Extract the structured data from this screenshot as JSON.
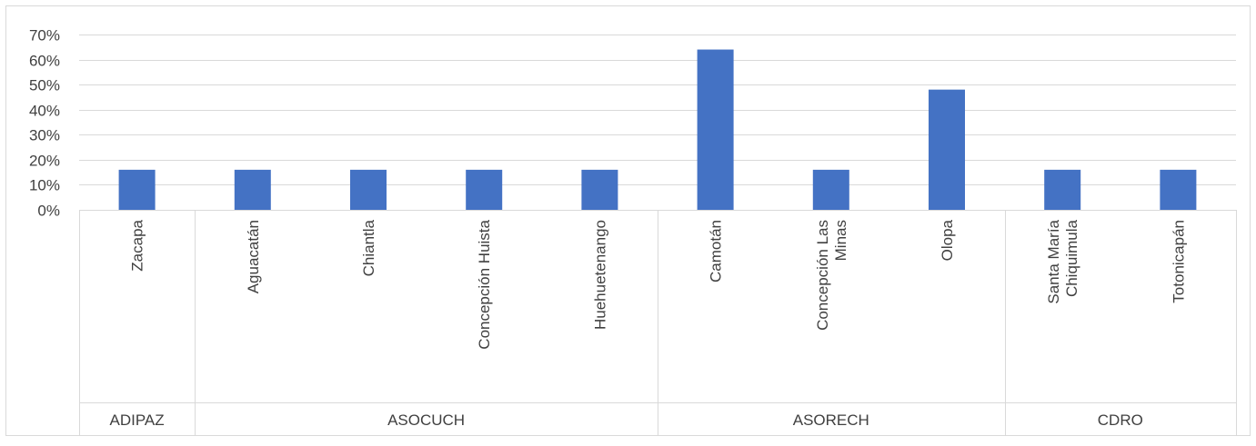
{
  "chart_data": {
    "type": "bar",
    "title": "",
    "xlabel": "",
    "ylabel": "",
    "ylim": [
      0,
      0.7
    ],
    "y_ticks": [
      0,
      0.1,
      0.2,
      0.3,
      0.4,
      0.5,
      0.6,
      0.7
    ],
    "y_tick_labels": [
      "0%",
      "10%",
      "20%",
      "30%",
      "40%",
      "50%",
      "60%",
      "70%"
    ],
    "grid": true,
    "legend": "none",
    "bar_color": "#4472C4",
    "categories": [
      "Zacapa",
      "Aguacatán",
      "Chiantla",
      "Concepción Huista",
      "Huehuetenango",
      "Camotán",
      "Concepción Las Minas",
      "Olopa",
      "Santa María Chiquimula",
      "Totonicapán"
    ],
    "category_label_lines": [
      [
        "Zacapa"
      ],
      [
        "Aguacatán"
      ],
      [
        "Chiantla"
      ],
      [
        "Concepción Huista"
      ],
      [
        "Huehuetenango"
      ],
      [
        "Camotán"
      ],
      [
        "Concepción Las",
        "Minas"
      ],
      [
        "Olopa"
      ],
      [
        "Santa María",
        "Chiquimula"
      ],
      [
        "Totonicapán"
      ]
    ],
    "groups": [
      {
        "label": "ADIPAZ",
        "count": 1
      },
      {
        "label": "ASOCUCH",
        "count": 4
      },
      {
        "label": "ASORECH",
        "count": 3
      },
      {
        "label": "CDRO",
        "count": 2
      }
    ],
    "values": [
      0.16,
      0.16,
      0.16,
      0.16,
      0.16,
      0.64,
      0.16,
      0.48,
      0.16,
      0.16
    ]
  }
}
